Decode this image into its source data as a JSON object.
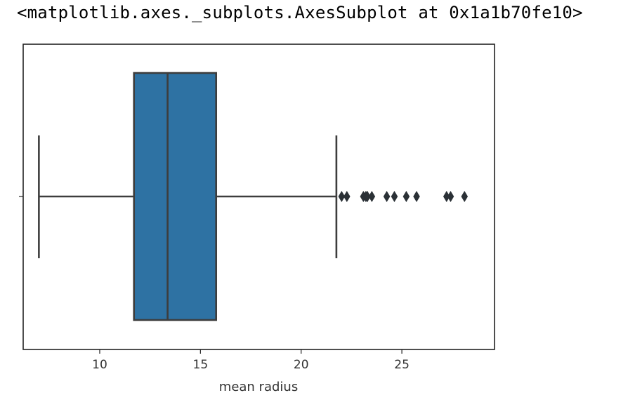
{
  "output": {
    "repr_text": "<matplotlib.axes._subplots.AxesSubplot at 0x1a1b70fe10>"
  },
  "chart_data": {
    "type": "box",
    "orientation": "horizontal",
    "xlabel": "mean radius",
    "ylabel": "",
    "xlim": [
      6.2,
      29.6
    ],
    "xticks": [
      10,
      15,
      20,
      25
    ],
    "xtick_labels": [
      "10",
      "15",
      "20",
      "25"
    ],
    "grid": false,
    "box": {
      "whisker_low": 6.98,
      "q1": 11.7,
      "median": 13.37,
      "q3": 15.78,
      "whisker_high": 21.75
    },
    "outliers": [
      22.01,
      22.27,
      23.09,
      23.21,
      23.27,
      23.29,
      23.51,
      24.25,
      24.63,
      25.22,
      25.73,
      27.22,
      27.42,
      28.11
    ],
    "colors": {
      "box_fill": "#2e72a3",
      "line": "#3d3d3d",
      "frame": "#222222"
    }
  }
}
